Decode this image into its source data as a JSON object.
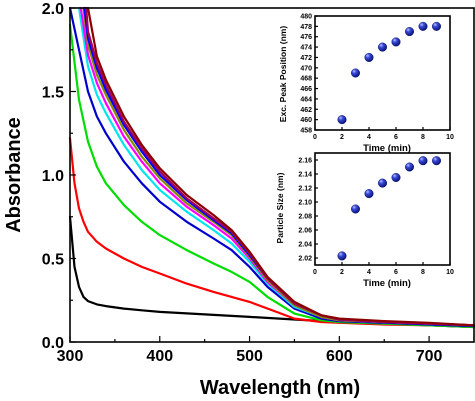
{
  "chart_data": [
    {
      "type": "line",
      "title": "",
      "xlabel": "Wavelength (nm)",
      "ylabel": "Absorbance",
      "xlim": [
        300,
        750
      ],
      "ylim": [
        0,
        2.0
      ],
      "xticks": [
        "300",
        "400",
        "500",
        "600",
        "700"
      ],
      "yticks": [
        "0.0",
        "0.5",
        "1.0",
        "1.5",
        "2.0"
      ],
      "grid": false,
      "series": [
        {
          "color": "#000000",
          "x": [
            300,
            305,
            310,
            315,
            320,
            330,
            340,
            360,
            380,
            400,
            450,
            500,
            550,
            600,
            650,
            700,
            750
          ],
          "y": [
            0.75,
            0.45,
            0.33,
            0.27,
            0.245,
            0.225,
            0.215,
            0.2,
            0.19,
            0.18,
            0.165,
            0.15,
            0.135,
            0.12,
            0.11,
            0.1,
            0.09
          ]
        },
        {
          "color": "#ff0000",
          "x": [
            300,
            305,
            310,
            315,
            320,
            330,
            340,
            360,
            380,
            400,
            430,
            460,
            500,
            530,
            550,
            580,
            600,
            650,
            700,
            750
          ],
          "y": [
            1.22,
            0.95,
            0.8,
            0.72,
            0.66,
            0.6,
            0.56,
            0.5,
            0.45,
            0.41,
            0.35,
            0.3,
            0.24,
            0.18,
            0.14,
            0.12,
            0.115,
            0.105,
            0.1,
            0.09
          ]
        },
        {
          "color": "#00dd00",
          "x": [
            300,
            310,
            320,
            330,
            340,
            360,
            380,
            400,
            430,
            460,
            480,
            500,
            520,
            550,
            580,
            600,
            650,
            700,
            750
          ],
          "y": [
            1.9,
            1.45,
            1.2,
            1.05,
            0.95,
            0.82,
            0.72,
            0.64,
            0.55,
            0.47,
            0.42,
            0.36,
            0.27,
            0.17,
            0.13,
            0.12,
            0.11,
            0.1,
            0.09
          ]
        },
        {
          "color": "#0000cc",
          "x": [
            300,
            310,
            320,
            330,
            340,
            360,
            380,
            400,
            430,
            460,
            480,
            500,
            520,
            550,
            580,
            600,
            650,
            700,
            750
          ],
          "y": [
            2.0,
            1.75,
            1.5,
            1.35,
            1.25,
            1.08,
            0.95,
            0.84,
            0.72,
            0.62,
            0.55,
            0.45,
            0.33,
            0.2,
            0.14,
            0.125,
            0.115,
            0.105,
            0.095
          ]
        },
        {
          "color": "#00e5ee",
          "x": [
            310,
            320,
            330,
            340,
            360,
            380,
            400,
            430,
            460,
            480,
            500,
            520,
            550,
            580,
            600,
            650,
            700,
            750
          ],
          "y": [
            2.0,
            1.65,
            1.48,
            1.37,
            1.18,
            1.03,
            0.91,
            0.78,
            0.67,
            0.59,
            0.48,
            0.35,
            0.21,
            0.15,
            0.13,
            0.12,
            0.11,
            0.1
          ]
        },
        {
          "color": "#ff00ff",
          "x": [
            312,
            320,
            330,
            340,
            360,
            380,
            400,
            430,
            460,
            480,
            500,
            520,
            550,
            580,
            600,
            650,
            700,
            750
          ],
          "y": [
            2.0,
            1.72,
            1.55,
            1.43,
            1.23,
            1.08,
            0.95,
            0.81,
            0.7,
            0.62,
            0.5,
            0.36,
            0.22,
            0.15,
            0.13,
            0.12,
            0.11,
            0.1
          ]
        },
        {
          "color": "#8a8a00",
          "x": [
            315,
            320,
            330,
            340,
            360,
            380,
            400,
            430,
            460,
            480,
            500,
            520,
            550,
            580,
            600,
            650,
            700,
            750
          ],
          "y": [
            2.0,
            1.78,
            1.6,
            1.48,
            1.27,
            1.11,
            0.98,
            0.83,
            0.72,
            0.64,
            0.51,
            0.37,
            0.22,
            0.15,
            0.13,
            0.12,
            0.11,
            0.1
          ]
        },
        {
          "color": "#0000ff",
          "x": [
            316,
            320,
            330,
            340,
            360,
            380,
            400,
            430,
            460,
            480,
            500,
            520,
            550,
            580,
            600,
            650,
            700,
            750
          ],
          "y": [
            2.0,
            1.82,
            1.64,
            1.51,
            1.3,
            1.14,
            1.0,
            0.85,
            0.73,
            0.65,
            0.52,
            0.38,
            0.23,
            0.16,
            0.135,
            0.12,
            0.11,
            0.1
          ]
        },
        {
          "color": "#a0005a",
          "x": [
            318,
            320,
            330,
            340,
            360,
            380,
            400,
            430,
            460,
            480,
            500,
            520,
            550,
            580,
            600,
            650,
            700,
            750
          ],
          "y": [
            2.0,
            1.86,
            1.67,
            1.54,
            1.32,
            1.16,
            1.02,
            0.86,
            0.74,
            0.66,
            0.53,
            0.38,
            0.23,
            0.16,
            0.135,
            0.12,
            0.11,
            0.1
          ]
        },
        {
          "color": "#8b0000",
          "x": [
            320,
            330,
            340,
            360,
            380,
            400,
            430,
            460,
            480,
            500,
            520,
            550,
            580,
            600,
            650,
            700,
            750
          ],
          "y": [
            2.0,
            1.71,
            1.57,
            1.35,
            1.18,
            1.04,
            0.88,
            0.76,
            0.67,
            0.54,
            0.39,
            0.24,
            0.16,
            0.14,
            0.125,
            0.115,
            0.1
          ]
        }
      ]
    },
    {
      "type": "scatter",
      "xlabel": "Time (min)",
      "ylabel": "Exc. Peak Position  (nm)",
      "xlim": [
        0,
        10
      ],
      "ylim": [
        458,
        480
      ],
      "xticks": [
        "0",
        "2",
        "4",
        "6",
        "8",
        "10"
      ],
      "yticks": [
        "458",
        "460",
        "462",
        "464",
        "466",
        "468",
        "470",
        "472",
        "474",
        "476",
        "478",
        "480"
      ],
      "x": [
        2,
        3,
        4,
        5,
        6,
        7,
        8,
        9
      ],
      "y": [
        460,
        469,
        472,
        474,
        475,
        477,
        478,
        478
      ]
    },
    {
      "type": "scatter",
      "xlabel": "Time (min)",
      "ylabel": "Particle Size (nm)",
      "xlim": [
        0,
        10
      ],
      "ylim": [
        2.01,
        2.17
      ],
      "xticks": [
        "0",
        "2",
        "4",
        "6",
        "8",
        "10"
      ],
      "yticks": [
        "2.02",
        "2.04",
        "2.06",
        "2.08",
        "2.10",
        "2.12",
        "2.14",
        "2.16"
      ],
      "x": [
        2,
        3,
        4,
        5,
        6,
        7,
        8,
        9
      ],
      "y": [
        2.023,
        2.09,
        2.112,
        2.127,
        2.135,
        2.15,
        2.159,
        2.159
      ]
    }
  ]
}
